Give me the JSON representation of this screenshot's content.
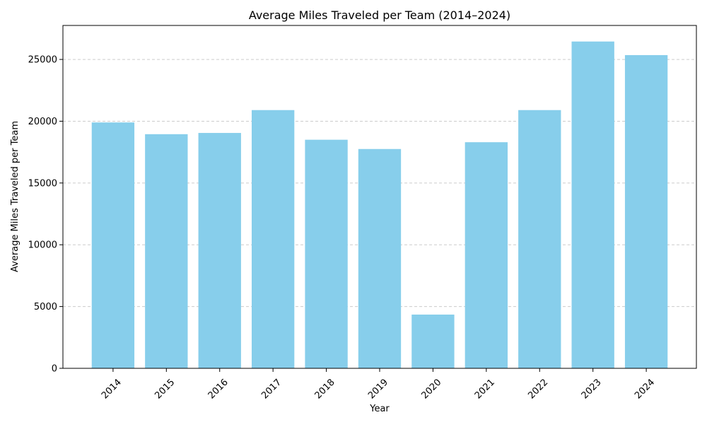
{
  "chart_data": {
    "type": "bar",
    "title": "Average Miles Traveled per Team (2014–2024)",
    "xlabel": "Year",
    "ylabel": "Average Miles Traveled per Team",
    "categories": [
      "2014",
      "2015",
      "2016",
      "2017",
      "2018",
      "2019",
      "2020",
      "2021",
      "2022",
      "2023",
      "2024"
    ],
    "values": [
      19900,
      18950,
      19050,
      20900,
      18500,
      17750,
      4350,
      18300,
      20900,
      26450,
      25350
    ],
    "ylim": [
      0,
      27750
    ],
    "yticks": [
      0,
      5000,
      10000,
      15000,
      20000,
      25000
    ],
    "grid": "y-dashed",
    "bar_color": "#87ceeb",
    "x_tick_rotation": "45 degrees"
  }
}
